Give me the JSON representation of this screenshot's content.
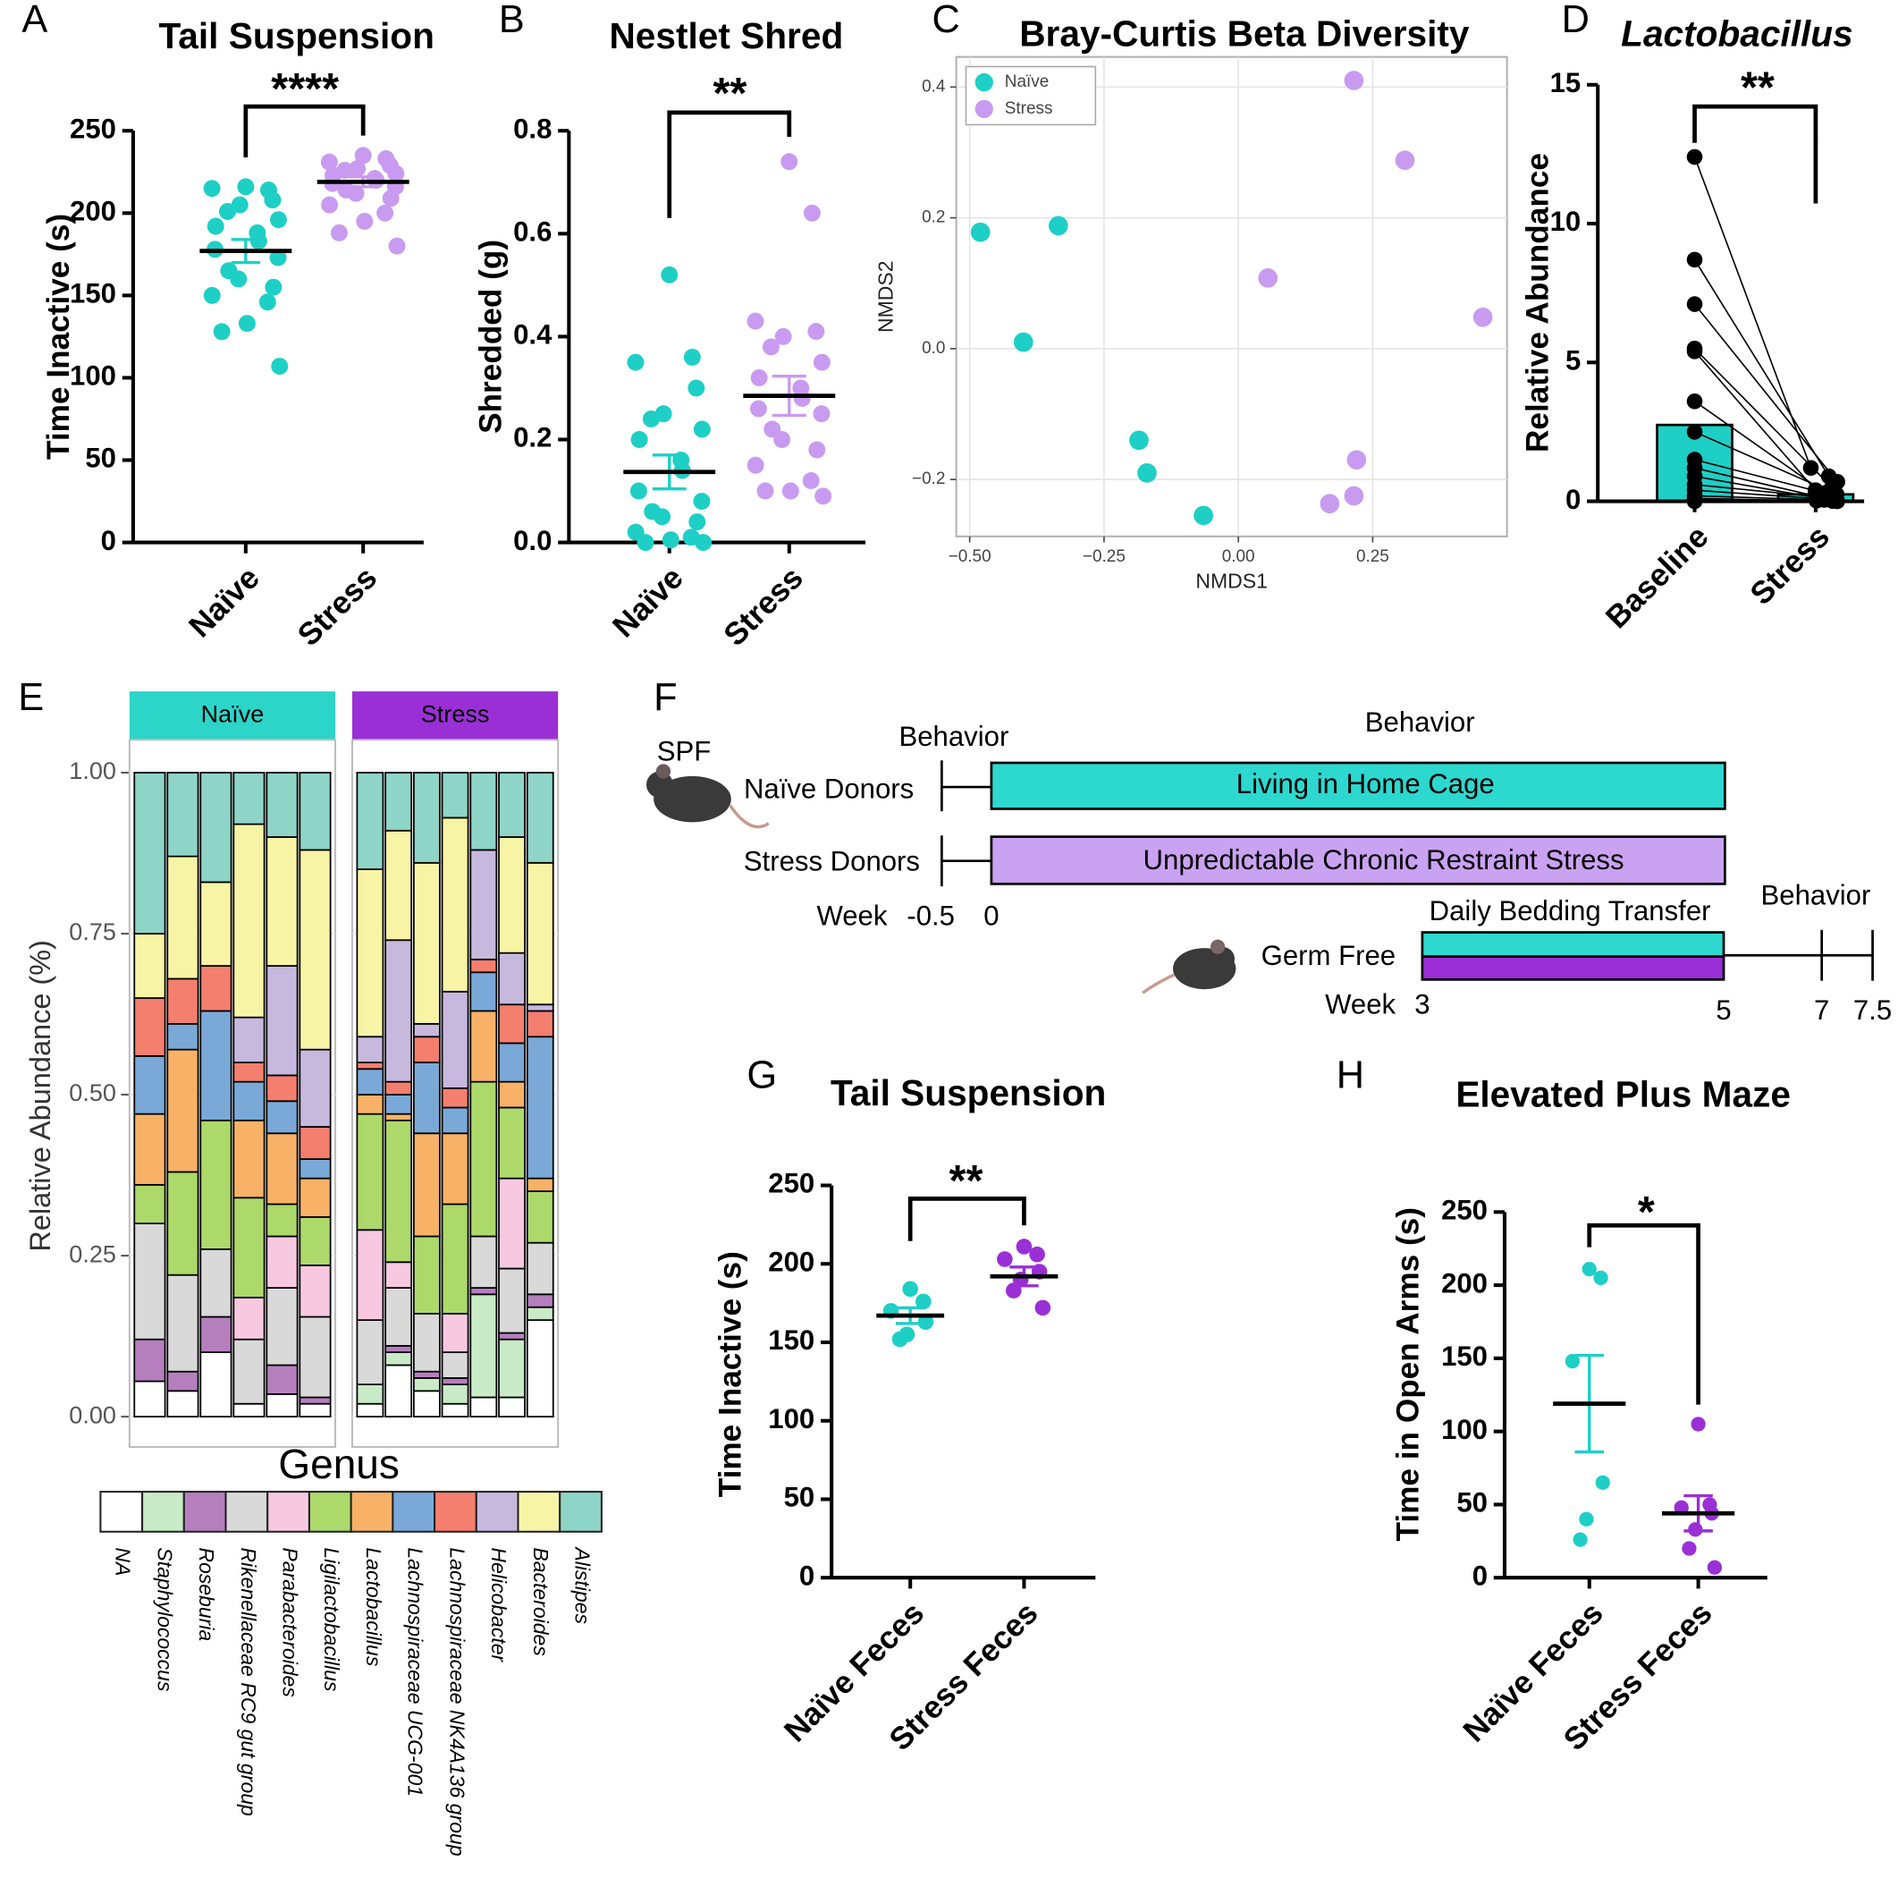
{
  "chart_data": [
    {
      "panel": "A",
      "type": "dot",
      "title": "Tail Suspension",
      "ylabel": "Time Inactive (s)",
      "categories": [
        "Naïve",
        "Stress"
      ],
      "significance": "****",
      "ylim": [
        0,
        250
      ],
      "yticks": [
        0,
        50,
        100,
        150,
        200,
        250
      ],
      "groups": [
        {
          "color": "#1ecfc5",
          "mean": 177,
          "error": 7,
          "values": [
            216,
            214,
            215,
            208,
            205,
            201,
            196,
            192,
            188,
            183,
            178,
            173,
            165,
            160,
            155,
            150,
            146,
            133,
            128,
            107
          ]
        },
        {
          "color": "#c99bf0",
          "mean": 219,
          "error": 3,
          "values": [
            235,
            233,
            231,
            229,
            227,
            226,
            224,
            223,
            221,
            220,
            218,
            216,
            214,
            212,
            209,
            205,
            200,
            195,
            188,
            180
          ]
        }
      ]
    },
    {
      "panel": "B",
      "type": "dot",
      "title": "Nestlet Shred",
      "ylabel": "Shredded (g)",
      "categories": [
        "Naïve",
        "Stress"
      ],
      "significance": "**",
      "ylim": [
        0,
        0.8
      ],
      "yticks": [
        {
          "value": 0,
          "label": "0.0"
        },
        0.2,
        0.4,
        0.6,
        0.8
      ],
      "groups": [
        {
          "color": "#1ecfc5",
          "mean": 0.137,
          "error": 0.033,
          "values": [
            0.52,
            0.36,
            0.35,
            0.3,
            0.25,
            0.24,
            0.22,
            0.2,
            0.16,
            0.14,
            0.1,
            0.08,
            0.06,
            0.05,
            0.04,
            0.02,
            0.01,
            0.005,
            0,
            0
          ]
        },
        {
          "color": "#c99bf0",
          "mean": 0.285,
          "error": 0.038,
          "values": [
            0.74,
            0.64,
            0.43,
            0.41,
            0.4,
            0.38,
            0.35,
            0.32,
            0.3,
            0.28,
            0.26,
            0.25,
            0.22,
            0.2,
            0.18,
            0.15,
            0.12,
            0.1,
            0.1,
            0.09
          ]
        }
      ]
    },
    {
      "panel": "C",
      "type": "scatter",
      "title": "Bray-Curtis Beta Diversity",
      "xlabel": "NMDS1",
      "ylabel": "NMDS2",
      "xlim": [
        -0.525,
        0.5
      ],
      "ylim": [
        -0.287,
        0.446
      ],
      "xticks": [
        {
          "value": -0.5,
          "label": "−0.50"
        },
        {
          "value": -0.25,
          "label": "−0.25"
        },
        {
          "value": 0,
          "label": "0.00"
        },
        {
          "value": 0.25,
          "label": "0.25"
        }
      ],
      "yticks": [
        {
          "value": -0.2,
          "label": "−0.2"
        },
        {
          "value": 0,
          "label": "0.0"
        },
        0.2,
        0.4
      ],
      "grid": true,
      "legend": "top-left",
      "series": [
        {
          "name": "Naïve",
          "color": "#1ecfc5",
          "x": [
            -0.48,
            -0.335,
            -0.4,
            -0.185,
            -0.17,
            -0.065
          ],
          "y": [
            0.178,
            0.188,
            0.01,
            -0.14,
            -0.19,
            -0.255
          ]
        },
        {
          "name": "Stress",
          "color": "#c99bf0",
          "x": [
            0.215,
            0.31,
            0.055,
            0.455,
            0.22,
            0.215,
            0.17
          ],
          "y": [
            0.41,
            0.288,
            0.108,
            0.048,
            -0.17,
            -0.225,
            -0.237
          ]
        }
      ]
    },
    {
      "panel": "D",
      "type": "paired_bar",
      "title": "Lactobacillus",
      "ylabel": "Relative Abundance",
      "categories": [
        "Baseline",
        "Stress"
      ],
      "significance": "**",
      "ylim": [
        0,
        15
      ],
      "yticks": [
        0,
        5,
        10,
        15
      ],
      "bar_color": "#1ecfc5",
      "point_color": "#000000",
      "groups": [
        {
          "mean": 2.75,
          "values": [
            12.4,
            8.7,
            7.1,
            5.5,
            5.4,
            3.6,
            2.5,
            1.5,
            1.2,
            0.9,
            0.6,
            0.4,
            0.2,
            0.1,
            0.05,
            0
          ]
        },
        {
          "mean": 0.25,
          "values": [
            1.2,
            0.9,
            0.7,
            0.5,
            0.4,
            0.3,
            0.25,
            0.2,
            0.15,
            0.1,
            0.1,
            0.05,
            0.05,
            0.02,
            0.01,
            0
          ]
        }
      ]
    },
    {
      "panel": "E",
      "type": "stacked_bar",
      "ylabel": "Relative Abundance (%)",
      "ylim": [
        -0.047,
        1.051
      ],
      "yticks": [
        {
          "value": 0,
          "label": "0.00"
        },
        {
          "value": 0.25,
          "label": "0.25"
        },
        {
          "value": 0.5,
          "label": "0.50"
        },
        {
          "value": 0.75,
          "label": "0.75"
        },
        {
          "value": 1,
          "label": "1.00"
        }
      ],
      "grid": true,
      "facets": [
        {
          "name": "Naïve",
          "color": "#2dd4c8"
        },
        {
          "name": "Stress",
          "color": "#9b2fd6"
        }
      ],
      "legend_title": "Genus",
      "series": [
        {
          "name": "NA",
          "color": "#ffffff",
          "values": [
            [
              0.055,
              0.04,
              0.1,
              0.02,
              0.035,
              0.02
            ],
            [
              0.02,
              0.08,
              0.04,
              0.02,
              0.03,
              0.03,
              0.15
            ]
          ]
        },
        {
          "name": "Staphylococcus",
          "color": "#c9eac7",
          "values": [
            [
              0,
              0,
              0,
              0,
              0,
              0
            ],
            [
              0.03,
              0.02,
              0.02,
              0.03,
              0.16,
              0.09,
              0.02
            ]
          ]
        },
        {
          "name": "Roseburia",
          "color": "#b57fbe",
          "values": [
            [
              0.065,
              0.03,
              0.055,
              0,
              0.045,
              0.01
            ],
            [
              0,
              0.01,
              0.01,
              0.01,
              0.01,
              0.01,
              0.02
            ]
          ]
        },
        {
          "name": "Rikenellaceae RC9 gut group",
          "color": "#d9d9d9",
          "values": [
            [
              0.18,
              0.15,
              0.105,
              0.1,
              0.12,
              0.125
            ],
            [
              0.1,
              0.09,
              0.09,
              0.04,
              0.08,
              0.1,
              0.08
            ]
          ]
        },
        {
          "name": "Parabacteroides",
          "color": "#f7c9e1",
          "values": [
            [
              0,
              0,
              0,
              0.065,
              0.08,
              0.08
            ],
            [
              0.14,
              0.04,
              0,
              0.06,
              0,
              0.14,
              0
            ]
          ]
        },
        {
          "name": "Ligilactobacillus",
          "color": "#acd96a",
          "values": [
            [
              0.06,
              0.16,
              0.2,
              0.155,
              0.05,
              0.075
            ],
            [
              0.18,
              0.22,
              0.12,
              0.17,
              0.24,
              0.11,
              0.08
            ]
          ]
        },
        {
          "name": "Lactobacillus",
          "color": "#f8b267",
          "values": [
            [
              0.11,
              0.19,
              0,
              0.12,
              0.11,
              0.06
            ],
            [
              0.03,
              0.01,
              0.16,
              0.11,
              0.11,
              0.04,
              0.02
            ]
          ]
        },
        {
          "name": "Lachnospiraceae UCG-001",
          "color": "#7aa9d8",
          "values": [
            [
              0.09,
              0.04,
              0.17,
              0.06,
              0.05,
              0.03
            ],
            [
              0.04,
              0.03,
              0.11,
              0.04,
              0.06,
              0.06,
              0.22
            ]
          ]
        },
        {
          "name": "Lachnospiraceae NK4A136 group",
          "color": "#f57f6e",
          "values": [
            [
              0.09,
              0.07,
              0.07,
              0.03,
              0.04,
              0.05
            ],
            [
              0.01,
              0.02,
              0.04,
              0.03,
              0.02,
              0.06,
              0.04
            ]
          ]
        },
        {
          "name": "Helicobacter",
          "color": "#c7b9de",
          "values": [
            [
              0,
              0,
              0,
              0.07,
              0.17,
              0.12
            ],
            [
              0.04,
              0.22,
              0.02,
              0.15,
              0.17,
              0.08,
              0.01
            ]
          ]
        },
        {
          "name": "Bacteroides",
          "color": "#f8f4a6",
          "values": [
            [
              0.1,
              0.19,
              0.13,
              0.3,
              0.2,
              0.31
            ],
            [
              0.26,
              0.17,
              0.25,
              0.27,
              0,
              0.18,
              0.22
            ]
          ]
        },
        {
          "name": "Alistipes",
          "color": "#8fd5c7",
          "values": [
            [
              0.25,
              0.13,
              0.17,
              0.08,
              0.1,
              0.12
            ],
            [
              0.15,
              0.09,
              0.14,
              0.07,
              0.12,
              0.1,
              0.14
            ]
          ]
        }
      ]
    },
    {
      "panel": "G",
      "type": "dot",
      "title": "Tail Suspension",
      "ylabel": "Time Inactive (s)",
      "categories": [
        "Naïve Feces",
        "Stress Feces"
      ],
      "significance": "**",
      "ylim": [
        0,
        250
      ],
      "yticks": [
        0,
        50,
        100,
        150,
        200,
        250
      ],
      "groups": [
        {
          "color": "#1ecfc5",
          "mean": 167,
          "error": 5,
          "values": [
            184,
            176,
            170,
            163,
            155,
            152
          ]
        },
        {
          "color": "#9a2fd5",
          "mean": 192,
          "error": 6,
          "values": [
            211,
            206,
            203,
            195,
            190,
            183,
            172
          ]
        }
      ]
    },
    {
      "panel": "H",
      "type": "dot",
      "title": "Elevated Plus Maze",
      "ylabel": "Time in Open Arms (s)",
      "categories": [
        "Naïve Feces",
        "Stress Feces"
      ],
      "significance": "*",
      "ylim": [
        0,
        250
      ],
      "yticks": [
        0,
        50,
        100,
        150,
        200,
        250
      ],
      "groups": [
        {
          "color": "#1ecfc5",
          "mean": 119,
          "error": 33,
          "values": [
            211,
            205,
            148,
            65,
            40,
            26
          ]
        },
        {
          "color": "#9a2fd5",
          "mean": 44,
          "error": 12,
          "values": [
            105,
            50,
            48,
            44,
            33,
            20,
            7
          ]
        }
      ]
    }
  ],
  "diagram": {
    "panel": "F",
    "spf": "SPF",
    "behavior": [
      "Behavior",
      "Behavior",
      "Behavior"
    ],
    "naive_donors": "Naïve Donors",
    "stress_donors": "Stress Donors",
    "naive_bar": "Living in Home Cage",
    "stress_bar": "Unpredictable Chronic Restraint Stress",
    "week": [
      "Week",
      "Week"
    ],
    "donor_weeks": [
      "-0.5",
      "0"
    ],
    "transfer": "Daily Bedding Transfer",
    "germ_free": "Germ Free",
    "recipient_weeks": [
      "3",
      "5",
      "7",
      "7.5"
    ]
  }
}
